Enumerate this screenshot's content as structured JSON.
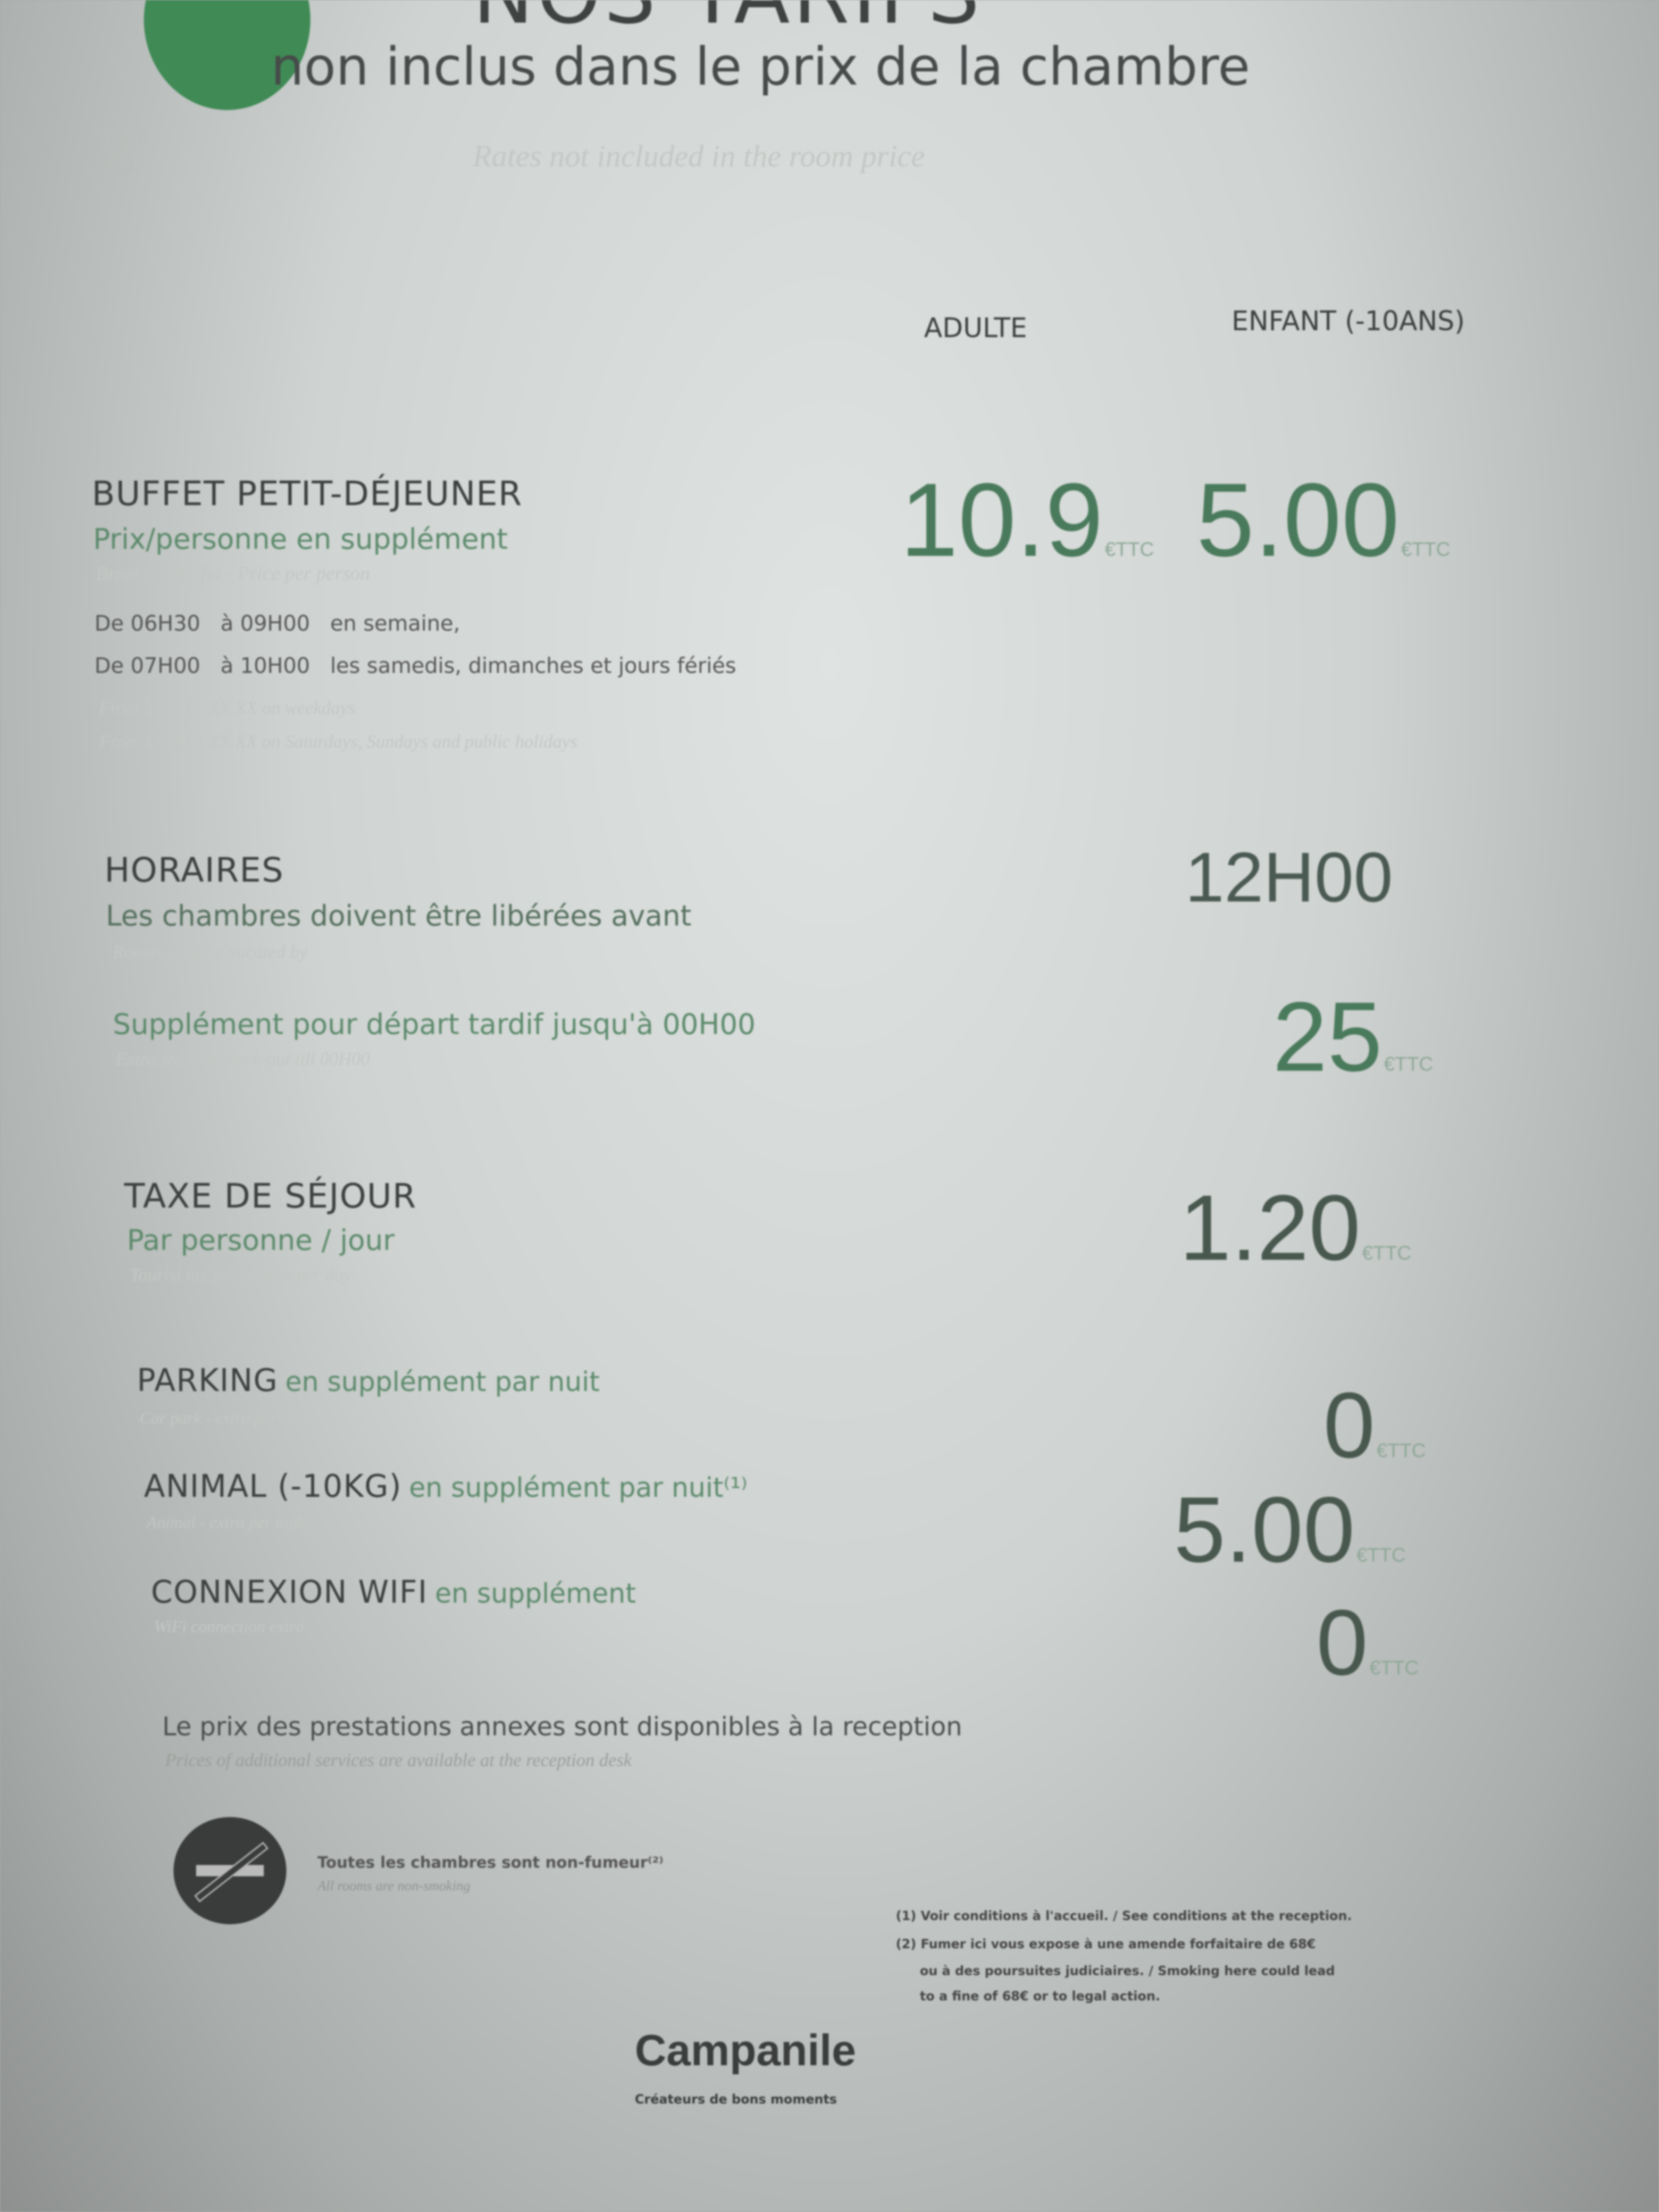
{
  "header": {
    "title": "NOS TARIFS",
    "subtitle": "non inclus dans le prix de la chambre",
    "subtitle_en": "Rates not included in the room price",
    "sleep_icon": "zz-sleep-icon"
  },
  "columns": {
    "adult": "ADULTE",
    "child": "ENFANT (-10ANS)"
  },
  "currency_unit": "€TTC",
  "breakfast": {
    "title": "BUFFET PETIT-DÉJEUNER",
    "subtitle": "Prix/personne en supplément",
    "subtitle_en": "Breakfast buffet - Price per person",
    "hours": [
      {
        "from": "De 06H30",
        "to": "à 09H00",
        "when": "en semaine,"
      },
      {
        "from": "De 07H00",
        "to": "à 10H00",
        "when": "les samedis, dimanches et jours fériés"
      }
    ],
    "hours_en": [
      "From XX.XX - XX.XX on weekdays",
      "From XX.XX - XX.XX on Saturdays, Sundays and public holidays"
    ],
    "adult_price": "10.9",
    "child_price": "5.00"
  },
  "schedule": {
    "title": "HORAIRES",
    "subtitle": "Les chambres doivent être libérées avant",
    "subtitle_en": "Rooms must be vacated by",
    "checkout": "12H00",
    "late_label": "Supplément pour départ tardif jusqu'à 00H00",
    "late_label_en": "Extra fee late check-out till 00H00",
    "late_price": "25"
  },
  "tax": {
    "title": "TAXE DE SÉJOUR",
    "subtitle": "Par personne / jour",
    "subtitle_en": "Tourist tax per person per day",
    "price": "1.20"
  },
  "extras": [
    {
      "title": "PARKING",
      "note": "en supplément par nuit",
      "note_en": "Car park - extra per night",
      "price": "0"
    },
    {
      "title": "ANIMAL (-10KG)",
      "note": "en supplément par nuit⁽¹⁾",
      "note_en": "Animal - extra per night",
      "price": "5.00"
    },
    {
      "title": "CONNEXION WIFI",
      "note": "en supplément",
      "note_en": "WiFi connection extra",
      "price": "0"
    }
  ],
  "annex_note": "Le prix des prestations annexes sont disponibles à la reception",
  "annex_note_en": "Prices of additional services are available at the reception desk",
  "smoking": {
    "icon": "no-smoking-icon",
    "text": "Toutes les chambres sont non-fumeur⁽²⁾",
    "text_en": "All rooms are non-smoking"
  },
  "footnotes": [
    "(1) Voir conditions à l'accueil. / See conditions at the reception.",
    "(2) Fumer ici vous expose à une amende forfaitaire de 68€",
    "ou à des poursuites judiciaires. / Smoking here could lead",
    "to a fine of 68€ or to legal action."
  ],
  "brand": {
    "name": "Campanile",
    "tagline": "Créateurs de bons moments"
  },
  "colors": {
    "brand_green": "#3f8a55",
    "price_green": "#4a7a5c",
    "text": "#3c3f3e"
  }
}
